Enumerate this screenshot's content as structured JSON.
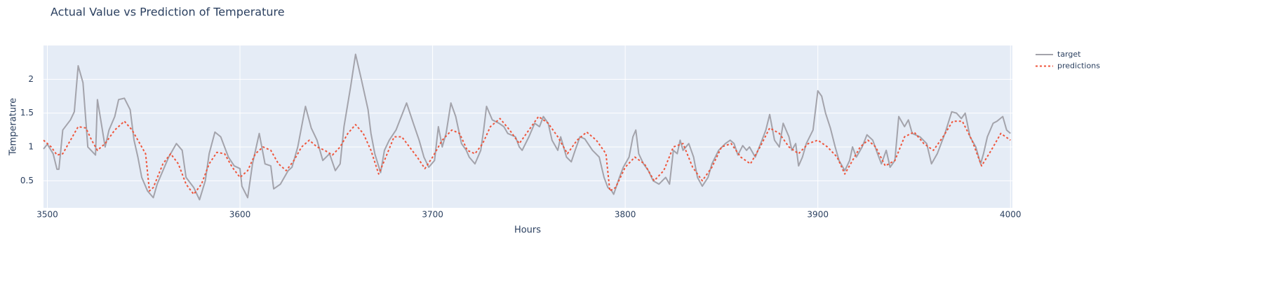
{
  "chart_data": {
    "type": "line",
    "title": "Actual Value vs Prediction of Temperature",
    "x_label": "Hours",
    "y_label": "Temperature",
    "xlim": [
      3498,
      4001
    ],
    "xticks": [
      3500,
      3600,
      3700,
      3800,
      3900,
      4000
    ],
    "ylim": [
      0.1,
      2.5
    ],
    "yticks": [
      0.5,
      1,
      1.5,
      2
    ],
    "grid": true,
    "legend": "right",
    "series": [
      {
        "name": "target",
        "color": "#a3a3ab",
        "dash": "solid",
        "x": [
          3498,
          3500,
          3503,
          3505,
          3506,
          3508,
          3512,
          3514,
          3516,
          3518.5,
          3521,
          3525,
          3526,
          3528,
          3530,
          3532,
          3535,
          3537,
          3540,
          3543,
          3545,
          3547,
          3549,
          3552,
          3555,
          3557,
          3560,
          3563,
          3567,
          3570,
          3572,
          3576,
          3579,
          3582,
          3584,
          3587,
          3590,
          3594,
          3597,
          3600,
          3601,
          3604,
          3606.5,
          3610,
          3613,
          3616,
          3617.5,
          3621,
          3625,
          3627,
          3630,
          3634,
          3637,
          3640,
          3643,
          3646.5,
          3649.5,
          3652,
          3654,
          3657.5,
          3660,
          3663,
          3666.5,
          3668,
          3670,
          3673,
          3675,
          3677.5,
          3681,
          3686.5,
          3690,
          3693,
          3695.5,
          3698,
          3701,
          3703,
          3705,
          3707,
          3709.5,
          3712,
          3715,
          3717.5,
          3719,
          3722,
          3725,
          3726.5,
          3728,
          3731,
          3734.5,
          3737,
          3739,
          3743,
          3745,
          3746.5,
          3750,
          3753,
          3755.5,
          3757.5,
          3760,
          3762,
          3765,
          3766.5,
          3769.5,
          3772,
          3774,
          3776.5,
          3779,
          3783,
          3786.5,
          3789,
          3791,
          3793,
          3794,
          3797,
          3799,
          3802,
          3804,
          3805.5,
          3807,
          3809.5,
          3812,
          3814.5,
          3817.5,
          3821,
          3823,
          3825,
          3827,
          3828.5,
          3830,
          3833,
          3835.5,
          3837.5,
          3840,
          3843,
          3845,
          3848.5,
          3852,
          3854.5,
          3856.5,
          3858.5,
          3861,
          3863,
          3864.5,
          3867.5,
          3871,
          3873,
          3875,
          3877.5,
          3880,
          3882,
          3885,
          3886.5,
          3888.5,
          3890,
          3892,
          3894,
          3897.5,
          3900,
          3902,
          3904,
          3906.5,
          3909,
          3911,
          3914,
          3916.5,
          3918,
          3920,
          3923,
          3925.5,
          3928.5,
          3931,
          3933,
          3935.5,
          3937.5,
          3940,
          3942,
          3945,
          3947,
          3949,
          3953,
          3956.5,
          3959,
          3962,
          3966,
          3969.5,
          3972,
          3974.5,
          3976.5,
          3979,
          3982,
          3984.5,
          3986,
          3988,
          3991,
          3993,
          3996,
          3998,
          4000
        ],
        "values": [
          0.97,
          1.04,
          0.9,
          0.67,
          0.67,
          1.25,
          1.4,
          1.52,
          2.2,
          1.95,
          1.0,
          0.88,
          1.7,
          1.35,
          1.0,
          1.25,
          1.45,
          1.7,
          1.72,
          1.55,
          1.1,
          0.85,
          0.55,
          0.35,
          0.25,
          0.45,
          0.65,
          0.85,
          1.05,
          0.95,
          0.55,
          0.4,
          0.22,
          0.5,
          0.9,
          1.22,
          1.15,
          0.85,
          0.72,
          0.68,
          0.42,
          0.25,
          0.75,
          1.2,
          0.75,
          0.72,
          0.38,
          0.45,
          0.65,
          0.7,
          1.0,
          1.6,
          1.28,
          1.1,
          0.8,
          0.9,
          0.65,
          0.75,
          1.3,
          1.9,
          2.37,
          2.0,
          1.55,
          1.2,
          0.9,
          0.62,
          0.95,
          1.1,
          1.25,
          1.65,
          1.35,
          1.1,
          0.85,
          0.7,
          0.8,
          1.3,
          1.0,
          1.2,
          1.65,
          1.45,
          1.05,
          0.95,
          0.85,
          0.75,
          0.95,
          1.25,
          1.6,
          1.4,
          1.35,
          1.3,
          1.2,
          1.15,
          1.0,
          0.95,
          1.15,
          1.35,
          1.3,
          1.45,
          1.35,
          1.1,
          0.95,
          1.15,
          0.85,
          0.78,
          0.95,
          1.15,
          1.12,
          0.95,
          0.85,
          0.55,
          0.4,
          0.35,
          0.3,
          0.55,
          0.7,
          0.85,
          1.15,
          1.25,
          0.9,
          0.75,
          0.65,
          0.5,
          0.45,
          0.55,
          0.45,
          0.95,
          0.9,
          1.1,
          0.95,
          1.05,
          0.85,
          0.55,
          0.42,
          0.55,
          0.75,
          0.95,
          1.05,
          1.1,
          1.05,
          0.88,
          1.02,
          0.95,
          1.0,
          0.85,
          1.1,
          1.25,
          1.48,
          1.1,
          1.0,
          1.35,
          1.15,
          0.95,
          1.05,
          0.72,
          0.85,
          1.05,
          1.25,
          1.83,
          1.75,
          1.5,
          1.28,
          1.0,
          0.8,
          0.65,
          0.8,
          1.0,
          0.85,
          1.0,
          1.18,
          1.1,
          0.9,
          0.75,
          0.95,
          0.7,
          0.8,
          1.45,
          1.3,
          1.4,
          1.2,
          1.15,
          1.05,
          0.75,
          0.9,
          1.2,
          1.52,
          1.5,
          1.42,
          1.5,
          1.15,
          1.0,
          0.75,
          0.9,
          1.15,
          1.35,
          1.38,
          1.45,
          1.25,
          1.2
        ]
      },
      {
        "name": "predictions",
        "color": "#ef553b",
        "dash": "dotted",
        "x": [
          3498,
          3502,
          3505,
          3508,
          3512,
          3516,
          3520,
          3523,
          3526,
          3530,
          3535,
          3540,
          3544,
          3548,
          3551,
          3553,
          3555,
          3560,
          3564,
          3568,
          3572,
          3576,
          3580,
          3584,
          3588,
          3592,
          3596,
          3600,
          3604,
          3608,
          3612,
          3616,
          3620,
          3624,
          3628,
          3632,
          3636,
          3640,
          3644,
          3648,
          3652,
          3656,
          3660,
          3664,
          3668,
          3672,
          3675,
          3680,
          3684,
          3688,
          3692,
          3696,
          3700,
          3705,
          3710,
          3714,
          3718,
          3722,
          3726,
          3730,
          3735,
          3740,
          3745,
          3750,
          3755,
          3760,
          3765,
          3770,
          3775,
          3780,
          3785,
          3790,
          3792,
          3795,
          3800,
          3805,
          3810,
          3815,
          3820,
          3825,
          3830,
          3835,
          3840,
          3845,
          3850,
          3855,
          3860,
          3865,
          3870,
          3875,
          3880,
          3885,
          3890,
          3895,
          3900,
          3905,
          3910,
          3914,
          3918,
          3922,
          3926,
          3930,
          3935,
          3940,
          3945,
          3950,
          3955,
          3960,
          3965,
          3970,
          3975,
          3980,
          3985,
          3990,
          3995,
          4000
        ],
        "values": [
          1.1,
          1.0,
          0.88,
          0.9,
          1.1,
          1.3,
          1.28,
          1.1,
          0.95,
          1.05,
          1.25,
          1.38,
          1.25,
          1.05,
          0.9,
          0.35,
          0.4,
          0.75,
          0.9,
          0.75,
          0.45,
          0.3,
          0.45,
          0.75,
          0.92,
          0.9,
          0.7,
          0.55,
          0.65,
          0.9,
          1.0,
          0.95,
          0.75,
          0.65,
          0.8,
          1.0,
          1.1,
          1.0,
          0.95,
          0.88,
          1.0,
          1.2,
          1.33,
          1.2,
          0.95,
          0.6,
          0.8,
          1.15,
          1.15,
          1.0,
          0.85,
          0.68,
          0.85,
          1.1,
          1.25,
          1.2,
          0.95,
          0.9,
          1.05,
          1.3,
          1.42,
          1.25,
          1.05,
          1.25,
          1.45,
          1.35,
          1.15,
          0.9,
          1.1,
          1.22,
          1.1,
          0.9,
          0.35,
          0.4,
          0.7,
          0.85,
          0.75,
          0.5,
          0.65,
          1.0,
          1.05,
          0.7,
          0.5,
          0.7,
          1.0,
          1.05,
          0.85,
          0.75,
          1.0,
          1.28,
          1.2,
          1.0,
          0.9,
          1.05,
          1.1,
          1.0,
          0.85,
          0.6,
          0.8,
          1.0,
          1.1,
          1.0,
          0.72,
          0.8,
          1.15,
          1.22,
          1.05,
          0.95,
          1.15,
          1.38,
          1.38,
          1.1,
          0.72,
          0.95,
          1.2,
          1.1
        ]
      }
    ]
  }
}
